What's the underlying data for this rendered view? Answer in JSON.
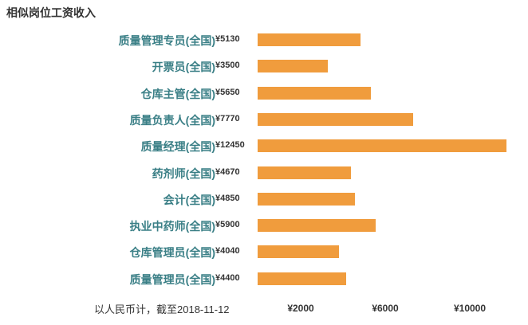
{
  "chart_data": {
    "type": "bar",
    "orientation": "horizontal",
    "title": "相似岗位工资收入",
    "footnote": "以人民币计，截至2018-11-12",
    "categories": [
      "质量管理专员(全国)",
      "开票员(全国)",
      "仓库主管(全国)",
      "质量负责人(全国)",
      "质量经理(全国)",
      "药剂师(全国)",
      "会计(全国)",
      "执业中药师(全国)",
      "仓库管理员(全国)",
      "质量管理员(全国)"
    ],
    "values": [
      5130,
      3500,
      5650,
      7770,
      12450,
      4670,
      4850,
      5900,
      4040,
      4400
    ],
    "value_labels": [
      "¥5130",
      "¥3500",
      "¥5650",
      "¥7770",
      "¥12450",
      "¥4670",
      "¥4850",
      "¥5900",
      "¥4040",
      "¥4400"
    ],
    "ticks": [
      2000,
      6000,
      10000
    ],
    "tick_labels": [
      "¥2000",
      "¥6000",
      "¥10000"
    ],
    "xlim": [
      0,
      12500
    ],
    "grid": false,
    "bar_color": "#f09c3d",
    "label_color": "#3a7f86"
  }
}
